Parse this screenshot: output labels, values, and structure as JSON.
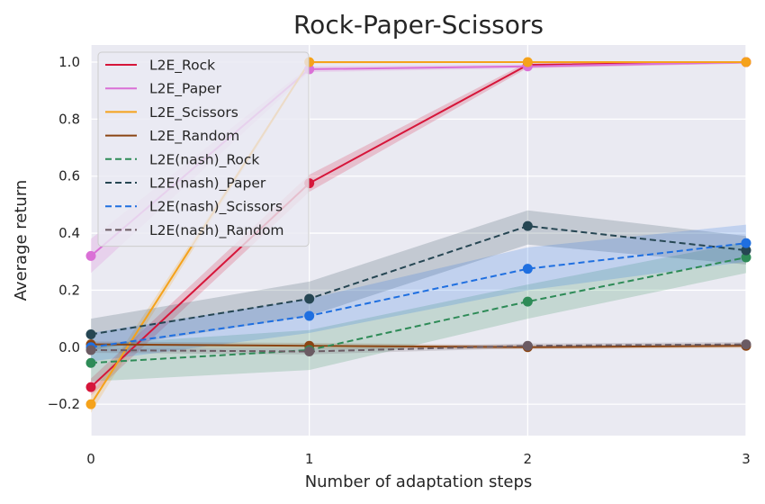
{
  "chart_data": {
    "type": "line",
    "title": "Rock-Paper-Scissors",
    "xlabel": "Number of adaptation steps",
    "ylabel": "Average return",
    "x": [
      0,
      1,
      2,
      3
    ],
    "xlim": [
      0,
      3
    ],
    "ylim": [
      -0.31,
      1.06
    ],
    "xticks": [
      0,
      1,
      2,
      3
    ],
    "yticks": [
      -0.2,
      0.0,
      0.2,
      0.4,
      0.6,
      0.8,
      1.0
    ],
    "ytick_labels": [
      "−0.2",
      "0.0",
      "0.2",
      "0.4",
      "0.6",
      "0.8",
      "1.0"
    ],
    "grid": true,
    "legend_position": "top-left",
    "series": [
      {
        "name": "L2E_Rock",
        "color": "#d6163a",
        "dash": "solid",
        "values": [
          -0.14,
          0.575,
          0.99,
          1.0
        ],
        "lower": [
          -0.17,
          0.545,
          0.98,
          0.995
        ],
        "upper": [
          -0.11,
          0.605,
          1.0,
          1.0
        ]
      },
      {
        "name": "L2E_Paper",
        "color": "#da70d6",
        "dash": "solid",
        "values": [
          0.32,
          0.975,
          0.985,
          1.0
        ],
        "lower": [
          0.26,
          0.965,
          0.978,
          0.995
        ],
        "upper": [
          0.38,
          0.985,
          0.992,
          1.0
        ]
      },
      {
        "name": "L2E_Scissors",
        "color": "#f5a21b",
        "dash": "solid",
        "values": [
          -0.2,
          1.0,
          1.0,
          1.0
        ],
        "lower": [
          -0.23,
          0.995,
          0.998,
          0.998
        ],
        "upper": [
          -0.17,
          1.0,
          1.0,
          1.0
        ]
      },
      {
        "name": "L2E_Random",
        "color": "#8b4513",
        "dash": "solid",
        "values": [
          0.01,
          0.005,
          0.0,
          0.005
        ],
        "lower": [
          0.0,
          -0.005,
          -0.007,
          -0.003
        ],
        "upper": [
          0.02,
          0.015,
          0.007,
          0.013
        ]
      },
      {
        "name": "L2E(nash)_Rock",
        "color": "#2e8b57",
        "dash": "dashed",
        "values": [
          -0.055,
          -0.01,
          0.16,
          0.315
        ],
        "lower": [
          -0.12,
          -0.08,
          0.1,
          0.26
        ],
        "upper": [
          0.01,
          0.06,
          0.22,
          0.37
        ]
      },
      {
        "name": "L2E(nash)_Paper",
        "color": "#264653",
        "dash": "dashed",
        "values": [
          0.045,
          0.17,
          0.425,
          0.34
        ],
        "lower": [
          -0.01,
          0.11,
          0.36,
          0.29
        ],
        "upper": [
          0.1,
          0.23,
          0.48,
          0.39
        ]
      },
      {
        "name": "L2E(nash)_Scissors",
        "color": "#1f6fe0",
        "dash": "dashed",
        "values": [
          0.0,
          0.11,
          0.275,
          0.365
        ],
        "lower": [
          -0.05,
          0.05,
          0.2,
          0.3
        ],
        "upper": [
          0.05,
          0.17,
          0.35,
          0.43
        ]
      },
      {
        "name": "L2E(nash)_Random",
        "color": "#6b5b63",
        "dash": "dashed",
        "values": [
          -0.01,
          -0.015,
          0.005,
          0.01
        ],
        "lower": [
          -0.02,
          -0.025,
          -0.003,
          0.002
        ],
        "upper": [
          0.0,
          -0.005,
          0.013,
          0.018
        ]
      }
    ]
  }
}
